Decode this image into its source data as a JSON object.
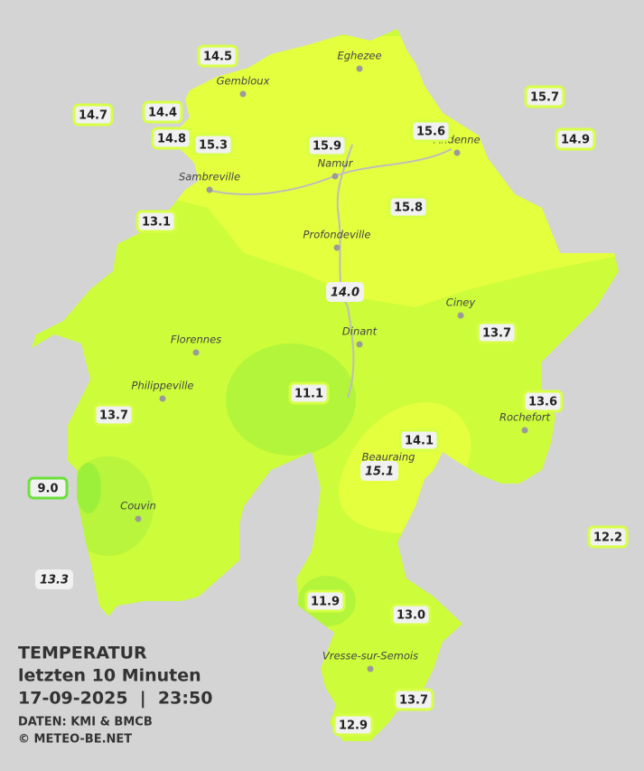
{
  "legend": {
    "title": "TEMPERATUR",
    "period": "letzten 10 Minuten",
    "timestamp": "17-09-2025  |  23:50",
    "source": "DATEN: KMI & BMCB",
    "copyright": "© METEO-BE.NET"
  },
  "towns": [
    "Eghezee",
    "Gembloux",
    "Andenne",
    "Namur",
    "Sambreville",
    "Profondeville",
    "Ciney",
    "Dinant",
    "Florennes",
    "Philippeville",
    "Rochefort",
    "Beauraing",
    "Couvin",
    "Vresse-sur-Semois"
  ],
  "stations": [
    "14.5",
    "14.7",
    "14.4",
    "14.8",
    "15.3",
    "15.9",
    "15.6",
    "15.7",
    "14.9",
    "13.1",
    "15.8",
    "14.0",
    "13.7",
    "11.1",
    "13.6",
    "13.7",
    "14.1",
    "15.1",
    "9.0",
    "12.2",
    "13.3",
    "11.9",
    "13.0",
    "13.7",
    "12.9"
  ]
}
